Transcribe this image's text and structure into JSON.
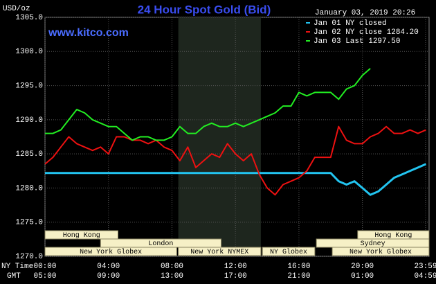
{
  "chart_data": {
    "type": "line",
    "title": "24 Hour Spot Gold (Bid)",
    "timestamp": "January 03, 2019 20:26",
    "y_label": "USD/oz",
    "website": "www.kitco.com",
    "x_row_labels": [
      "NY Time",
      "GMT"
    ],
    "x": [
      0,
      0.5,
      1,
      1.5,
      2,
      2.5,
      3,
      3.5,
      4,
      4.5,
      5,
      5.5,
      6,
      6.5,
      7,
      7.5,
      8,
      8.5,
      9,
      9.5,
      10,
      10.5,
      11,
      11.5,
      12,
      12.5,
      13,
      13.5,
      14,
      14.5,
      15,
      15.5,
      16,
      16.5,
      17,
      17.5,
      18,
      18.5,
      19,
      19.5,
      20,
      20.5,
      21,
      21.5,
      22,
      22.5,
      23,
      23.5,
      24
    ],
    "series": [
      {
        "name": "Jan 01 NY closed",
        "color": "#22c4f0",
        "values": [
          1282.2,
          1282.2,
          1282.2,
          1282.2,
          1282.2,
          1282.2,
          1282.2,
          1282.2,
          1282.2,
          1282.2,
          1282.2,
          1282.2,
          1282.2,
          1282.2,
          1282.2,
          1282.2,
          1282.2,
          1282.2,
          1282.2,
          1282.2,
          1282.2,
          1282.2,
          1282.2,
          1282.2,
          1282.2,
          1282.2,
          1282.2,
          1282.2,
          1282.2,
          1282.2,
          1282.2,
          1282.2,
          1282.2,
          1282.2,
          1282.2,
          1282.2,
          1282.2,
          1281,
          1280.5,
          1281,
          1280,
          1279,
          1279.5,
          1280.5,
          1281.5,
          1282,
          1282.5,
          1283,
          1283.5
        ]
      },
      {
        "name": "Jan 02 NY close 1284.20",
        "color": "#ee1111",
        "values": [
          1283.5,
          1284.5,
          1286,
          1287.5,
          1286.5,
          1286,
          1285.5,
          1286,
          1285,
          1287.5,
          1287.5,
          1287,
          1287,
          1286.5,
          1287,
          1286,
          1285.5,
          1284,
          1286,
          1283,
          1284,
          1285,
          1284.5,
          1286.5,
          1285,
          1284,
          1285,
          1282,
          1280,
          1279,
          1280.5,
          1281,
          1281.5,
          1282.5,
          1284.5,
          1284.5,
          1284.5,
          1289,
          1287,
          1286.5,
          1286.5,
          1287.5,
          1288,
          1289,
          1288,
          1288,
          1288.5,
          1288,
          1288.5
        ]
      },
      {
        "name": "Jan 03 Last 1297.50",
        "color": "#22ee22",
        "values": [
          1288,
          1288,
          1288.5,
          1290,
          1291.5,
          1291,
          1290,
          1289.5,
          1289,
          1289,
          1288,
          1287,
          1287.5,
          1287.5,
          1287,
          1287,
          1287.5,
          1289,
          1288,
          1288,
          1289,
          1289.5,
          1289,
          1289,
          1289.5,
          1289,
          1289.5,
          1290,
          1290.5,
          1291,
          1292,
          1292,
          1294,
          1293.5,
          1294,
          1294,
          1294,
          1293,
          1294.5,
          1295,
          1296.5,
          1297.5,
          null,
          null,
          null,
          null,
          null,
          null,
          null
        ]
      }
    ],
    "xlim": [
      0,
      24.2
    ],
    "ylim": [
      1270,
      1305
    ],
    "xticks": [
      {
        "value": 0,
        "label": "00:00"
      },
      {
        "value": 4,
        "label": "04:00"
      },
      {
        "value": 8,
        "label": "08:00"
      },
      {
        "value": 12,
        "label": "12:00"
      },
      {
        "value": 16,
        "label": "16:00"
      },
      {
        "value": 20,
        "label": "20:00"
      },
      {
        "value": 23.98,
        "label": "23:59"
      }
    ],
    "gmt_labels": [
      "05:00",
      "09:00",
      "13:00",
      "17:00",
      "21:00",
      "01:00",
      "04:59"
    ],
    "yticks": [
      {
        "value": 1270,
        "label": "1270.0"
      },
      {
        "value": 1275,
        "label": "1275.0"
      },
      {
        "value": 1280,
        "label": "1280.0"
      },
      {
        "value": 1285,
        "label": "1285.0"
      },
      {
        "value": 1290,
        "label": "1290.0"
      },
      {
        "value": 1295,
        "label": "1295.0"
      },
      {
        "value": 1300,
        "label": "1300.0"
      },
      {
        "value": 1305,
        "label": "1305.0"
      }
    ],
    "grid": true,
    "highlight": [
      8.4,
      13.6
    ],
    "session_rows": [
      [
        {
          "label": "Hong Kong",
          "start": 0,
          "end": 4.6
        },
        {
          "label": "Hong Kong",
          "start": 19.7,
          "end": 24.2
        }
      ],
      [
        {
          "label": "London",
          "start": 3.5,
          "end": 11.1
        },
        {
          "label": "Sydney",
          "start": 17.1,
          "end": 24.2
        }
      ],
      [
        {
          "label": "New York Globex",
          "start": 0,
          "end": 8.3
        },
        {
          "label": "New York NYMEX",
          "start": 8.4,
          "end": 13.6
        },
        {
          "label": "NY Globex",
          "start": 13.7,
          "end": 17.0
        },
        {
          "label": "New York Globex",
          "start": 18.1,
          "end": 24.2
        }
      ]
    ]
  }
}
